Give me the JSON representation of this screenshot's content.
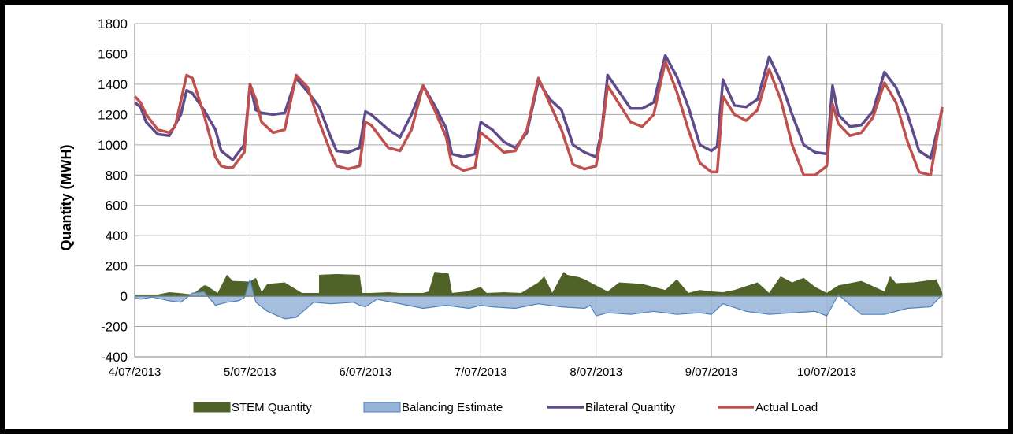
{
  "chart_data": {
    "type": "line",
    "ylabel": "Quantity (MWH)",
    "xlabel": "",
    "title": "",
    "ylim": [
      -400,
      1800
    ],
    "yticks": [
      -400,
      -200,
      0,
      200,
      400,
      600,
      800,
      1000,
      1200,
      1400,
      1600,
      1800
    ],
    "xlim": [
      0,
      7
    ],
    "x_tick_labels": [
      "4/07/2013",
      "5/07/2013",
      "6/07/2013",
      "7/07/2013",
      "8/07/2013",
      "9/07/2013",
      "10/07/2013"
    ],
    "x_unit": "days since 4/07/2013",
    "grid": true,
    "legend_position": "bottom",
    "series": [
      {
        "name": "STEM Quantity",
        "kind": "area",
        "color": "#4f6228",
        "x": [
          0,
          0.2,
          0.3,
          0.38,
          0.5,
          0.6,
          0.62,
          0.72,
          0.8,
          0.85,
          1.0,
          1.05,
          1.1,
          1.15,
          1.3,
          1.45,
          1.55,
          1.6,
          1.6,
          1.75,
          1.95,
          1.97,
          2.05,
          2.2,
          2.3,
          2.5,
          2.55,
          2.6,
          2.72,
          2.75,
          2.88,
          3.0,
          3.05,
          3.2,
          3.35,
          3.5,
          3.55,
          3.62,
          3.72,
          3.75,
          3.85,
          3.9,
          4.0,
          4.1,
          4.2,
          4.4,
          4.6,
          4.7,
          4.8,
          4.9,
          5.0,
          5.1,
          5.2,
          5.4,
          5.5,
          5.6,
          5.7,
          5.8,
          5.9,
          6.0,
          6.1,
          6.3,
          6.5,
          6.55,
          6.6,
          6.75,
          6.95,
          7.0
        ],
        "y": [
          10,
          10,
          25,
          20,
          10,
          70,
          70,
          20,
          140,
          100,
          95,
          120,
          25,
          80,
          90,
          20,
          20,
          20,
          140,
          145,
          140,
          20,
          20,
          25,
          20,
          20,
          30,
          160,
          150,
          20,
          30,
          60,
          20,
          25,
          20,
          90,
          130,
          20,
          160,
          140,
          125,
          110,
          70,
          30,
          90,
          80,
          40,
          110,
          20,
          40,
          30,
          25,
          40,
          90,
          20,
          130,
          90,
          120,
          60,
          20,
          70,
          100,
          30,
          130,
          85,
          90,
          110,
          20
        ]
      },
      {
        "name": "Balancing Estimate",
        "kind": "area",
        "color": "#95b3d7",
        "x": [
          0,
          0.05,
          0.15,
          0.3,
          0.4,
          0.5,
          0.6,
          0.7,
          0.8,
          0.9,
          0.95,
          1.0,
          1.05,
          1.15,
          1.3,
          1.4,
          1.55,
          1.7,
          1.9,
          1.95,
          2.0,
          2.1,
          2.3,
          2.5,
          2.7,
          2.9,
          3.0,
          3.1,
          3.3,
          3.5,
          3.7,
          3.9,
          3.95,
          4.0,
          4.1,
          4.3,
          4.5,
          4.7,
          4.9,
          5.0,
          5.1,
          5.3,
          5.5,
          5.7,
          5.9,
          6.0,
          6.1,
          6.3,
          6.5,
          6.7,
          6.9,
          7.0
        ],
        "y": [
          -10,
          -20,
          -5,
          -30,
          -40,
          20,
          30,
          -60,
          -40,
          -30,
          -10,
          110,
          -40,
          -100,
          -150,
          -140,
          -40,
          -50,
          -40,
          -60,
          -70,
          -20,
          -50,
          -80,
          -60,
          -80,
          -60,
          -70,
          -80,
          -50,
          -70,
          -80,
          -60,
          -130,
          -110,
          -120,
          -100,
          -120,
          -110,
          -120,
          -50,
          -100,
          -120,
          -110,
          -100,
          -130,
          10,
          -120,
          -120,
          -80,
          -70,
          10
        ]
      },
      {
        "name": "Bilateral Quantity",
        "kind": "line",
        "color": "#5f4b8b",
        "x": [
          0,
          0.05,
          0.1,
          0.2,
          0.3,
          0.4,
          0.45,
          0.5,
          0.6,
          0.7,
          0.75,
          0.8,
          0.85,
          0.95,
          1.0,
          1.05,
          1.1,
          1.2,
          1.3,
          1.4,
          1.5,
          1.6,
          1.7,
          1.75,
          1.85,
          1.95,
          2.0,
          2.05,
          2.2,
          2.3,
          2.4,
          2.5,
          2.6,
          2.7,
          2.75,
          2.85,
          2.95,
          3.0,
          3.1,
          3.2,
          3.3,
          3.4,
          3.5,
          3.6,
          3.7,
          3.8,
          3.9,
          4.0,
          4.05,
          4.1,
          4.3,
          4.4,
          4.5,
          4.6,
          4.7,
          4.8,
          4.9,
          5.0,
          5.05,
          5.1,
          5.2,
          5.3,
          5.4,
          5.5,
          5.6,
          5.7,
          5.8,
          5.9,
          6.0,
          6.05,
          6.1,
          6.2,
          6.3,
          6.4,
          6.5,
          6.6,
          6.7,
          6.8,
          6.9,
          7.0
        ],
        "y": [
          1280,
          1250,
          1150,
          1070,
          1060,
          1200,
          1360,
          1340,
          1230,
          1100,
          960,
          930,
          900,
          1000,
          1400,
          1230,
          1210,
          1200,
          1210,
          1440,
          1350,
          1250,
          1050,
          960,
          950,
          980,
          1220,
          1200,
          1100,
          1050,
          1200,
          1390,
          1260,
          1110,
          940,
          920,
          940,
          1150,
          1100,
          1020,
          980,
          1080,
          1420,
          1300,
          1230,
          1000,
          950,
          920,
          1100,
          1460,
          1240,
          1240,
          1280,
          1590,
          1450,
          1250,
          1000,
          960,
          990,
          1430,
          1260,
          1250,
          1300,
          1580,
          1420,
          1200,
          1000,
          950,
          940,
          1390,
          1200,
          1120,
          1130,
          1220,
          1480,
          1380,
          1200,
          960,
          910,
          1230
        ]
      },
      {
        "name": "Actual Load",
        "kind": "line",
        "color": "#c0504d",
        "x": [
          0,
          0.05,
          0.1,
          0.2,
          0.3,
          0.35,
          0.45,
          0.5,
          0.6,
          0.7,
          0.75,
          0.8,
          0.85,
          0.95,
          1.0,
          1.05,
          1.1,
          1.2,
          1.3,
          1.4,
          1.5,
          1.6,
          1.7,
          1.75,
          1.85,
          1.95,
          2.0,
          2.05,
          2.2,
          2.3,
          2.4,
          2.5,
          2.6,
          2.7,
          2.75,
          2.85,
          2.95,
          3.0,
          3.1,
          3.2,
          3.3,
          3.4,
          3.5,
          3.6,
          3.7,
          3.8,
          3.9,
          4.0,
          4.05,
          4.1,
          4.3,
          4.4,
          4.5,
          4.6,
          4.7,
          4.8,
          4.9,
          5.0,
          5.05,
          5.1,
          5.2,
          5.3,
          5.4,
          5.5,
          5.6,
          5.7,
          5.8,
          5.9,
          6.0,
          6.05,
          6.1,
          6.2,
          6.3,
          6.4,
          6.5,
          6.6,
          6.7,
          6.8,
          6.9,
          7.0
        ],
        "y": [
          1320,
          1280,
          1200,
          1100,
          1080,
          1120,
          1460,
          1440,
          1200,
          920,
          860,
          850,
          850,
          950,
          1400,
          1300,
          1150,
          1080,
          1100,
          1460,
          1380,
          1150,
          950,
          860,
          840,
          860,
          1150,
          1130,
          980,
          960,
          1100,
          1390,
          1230,
          1050,
          870,
          830,
          850,
          1080,
          1020,
          950,
          960,
          1100,
          1440,
          1270,
          1100,
          870,
          840,
          860,
          1080,
          1390,
          1150,
          1120,
          1200,
          1550,
          1350,
          1100,
          880,
          820,
          820,
          1320,
          1200,
          1160,
          1230,
          1500,
          1300,
          1000,
          800,
          800,
          860,
          1270,
          1140,
          1060,
          1080,
          1180,
          1410,
          1280,
          1020,
          820,
          800,
          1250
        ]
      }
    ]
  }
}
